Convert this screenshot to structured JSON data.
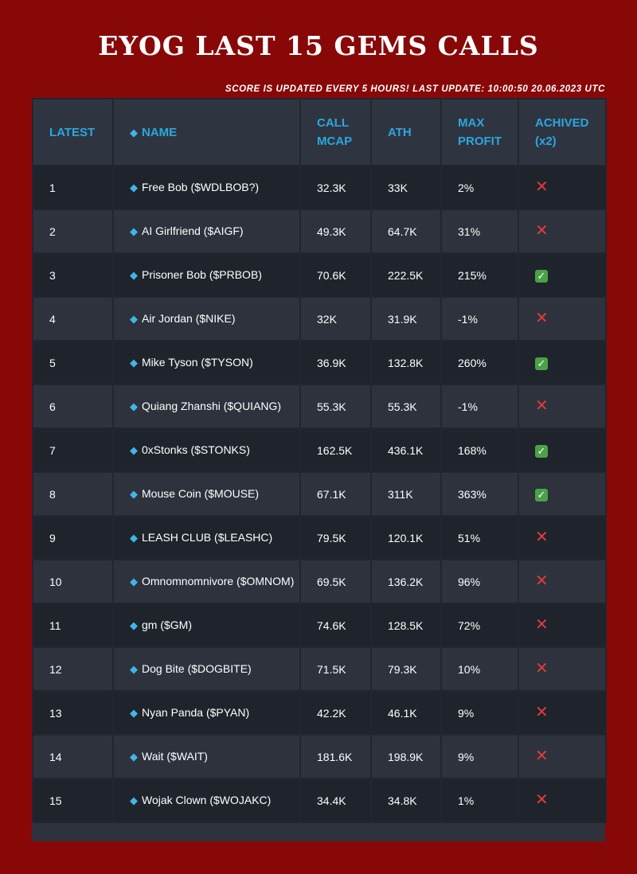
{
  "title": "EYOG LAST 15 GEMS CALLS",
  "subtitle": "SCORE IS UPDATED EVERY 5 HOURS! LAST UPDATE: 10:00:50 20.06.2023 UTC",
  "table": {
    "headers": {
      "latest": "LATEST",
      "name": "NAME",
      "call_mcap": "CALL MCAP",
      "ath": "ATH",
      "max_profit": "MAX PROFIT",
      "achived": "ACHIVED",
      "achived_suffix": "(x2)"
    },
    "rows": [
      {
        "n": "1",
        "name": "Free Bob ($WDLBOB?)",
        "call_mcap": "32.3K",
        "ath": "33K",
        "max_profit": "2%",
        "achieved": false
      },
      {
        "n": "2",
        "name": "AI Girlfriend ($AIGF)",
        "call_mcap": "49.3K",
        "ath": "64.7K",
        "max_profit": "31%",
        "achieved": false
      },
      {
        "n": "3",
        "name": "Prisoner Bob ($PRBOB)",
        "call_mcap": "70.6K",
        "ath": "222.5K",
        "max_profit": "215%",
        "achieved": true
      },
      {
        "n": "4",
        "name": "Air Jordan ($NIKE)",
        "call_mcap": "32K",
        "ath": "31.9K",
        "max_profit": "-1%",
        "achieved": false
      },
      {
        "n": "5",
        "name": "Mike Tyson ($TYSON)",
        "call_mcap": "36.9K",
        "ath": "132.8K",
        "max_profit": "260%",
        "achieved": true
      },
      {
        "n": "6",
        "name": "Quiang Zhanshi ($QUIANG)",
        "call_mcap": "55.3K",
        "ath": "55.3K",
        "max_profit": "-1%",
        "achieved": false
      },
      {
        "n": "7",
        "name": "0xStonks ($STONKS)",
        "call_mcap": "162.5K",
        "ath": "436.1K",
        "max_profit": "168%",
        "achieved": true
      },
      {
        "n": "8",
        "name": "Mouse Coin ($MOUSE)",
        "call_mcap": "67.1K",
        "ath": "311K",
        "max_profit": "363%",
        "achieved": true
      },
      {
        "n": "9",
        "name": "LEASH CLUB ($LEASHC)",
        "call_mcap": "79.5K",
        "ath": "120.1K",
        "max_profit": "51%",
        "achieved": false
      },
      {
        "n": "10",
        "name": "Omnomnomnivore ($OMNOM)",
        "call_mcap": "69.5K",
        "ath": "136.2K",
        "max_profit": "96%",
        "achieved": false
      },
      {
        "n": "11",
        "name": "gm ($GM)",
        "call_mcap": "74.6K",
        "ath": "128.5K",
        "max_profit": "72%",
        "achieved": false
      },
      {
        "n": "12",
        "name": "Dog Bite ($DOGBITE)",
        "call_mcap": "71.5K",
        "ath": "79.3K",
        "max_profit": "10%",
        "achieved": false
      },
      {
        "n": "13",
        "name": "Nyan Panda ($PYAN)",
        "call_mcap": "42.2K",
        "ath": "46.1K",
        "max_profit": "9%",
        "achieved": false
      },
      {
        "n": "14",
        "name": "Wait ($WAIT)",
        "call_mcap": "181.6K",
        "ath": "198.9K",
        "max_profit": "9%",
        "achieved": false
      },
      {
        "n": "15",
        "name": "Wojak Clown ($WOJAKC)",
        "call_mcap": "34.4K",
        "ath": "34.8K",
        "max_profit": "1%",
        "achieved": false
      }
    ]
  },
  "icons": {
    "gem": "gem-icon",
    "achieved_true": "check-icon",
    "achieved_false": "cross-icon"
  },
  "colors": {
    "background": "#880808",
    "header_text": "#2aa7df",
    "row_dark": "#1f232b",
    "row_light": "#2d323c",
    "cross": "#e23b3b",
    "check": "#4aa246"
  }
}
